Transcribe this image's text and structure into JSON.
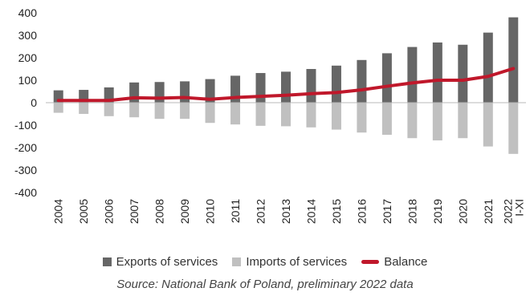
{
  "chart_data": {
    "type": "bar",
    "categories": [
      "2004",
      "2005",
      "2006",
      "2007",
      "2008",
      "2009",
      "2010",
      "2011",
      "2012",
      "2013",
      "2014",
      "2015",
      "2016",
      "2017",
      "2018",
      "2019",
      "2020",
      "2021",
      "2022 I-XI"
    ],
    "series": [
      {
        "name": "Exports of services",
        "type": "bar",
        "color": "#666666",
        "values": [
          55,
          57,
          68,
          90,
          92,
          95,
          105,
          120,
          132,
          138,
          150,
          165,
          190,
          220,
          248,
          268,
          258,
          312,
          380
        ]
      },
      {
        "name": "Imports of services",
        "type": "bar",
        "color": "#c0c0c0",
        "values": [
          -45,
          -50,
          -60,
          -65,
          -72,
          -72,
          -90,
          -97,
          -103,
          -105,
          -110,
          -120,
          -133,
          -143,
          -158,
          -168,
          -158,
          -195,
          -228
        ]
      },
      {
        "name": "Balance",
        "type": "line",
        "color": "#c0182b",
        "values": [
          10,
          10,
          10,
          22,
          20,
          23,
          15,
          23,
          28,
          33,
          40,
          45,
          57,
          73,
          88,
          100,
          100,
          117,
          152
        ]
      }
    ],
    "ylim": [
      -400,
      400
    ],
    "yticks": [
      -400,
      -300,
      -200,
      -100,
      0,
      100,
      200,
      300,
      400
    ],
    "xlabel": "",
    "ylabel": "",
    "grid": false,
    "legend_position": "bottom"
  },
  "legend": {
    "exports_label": "Exports of services",
    "imports_label": "Imports of services",
    "balance_label": "Balance"
  },
  "source": "Source: National Bank of Poland, preliminary 2022 data"
}
